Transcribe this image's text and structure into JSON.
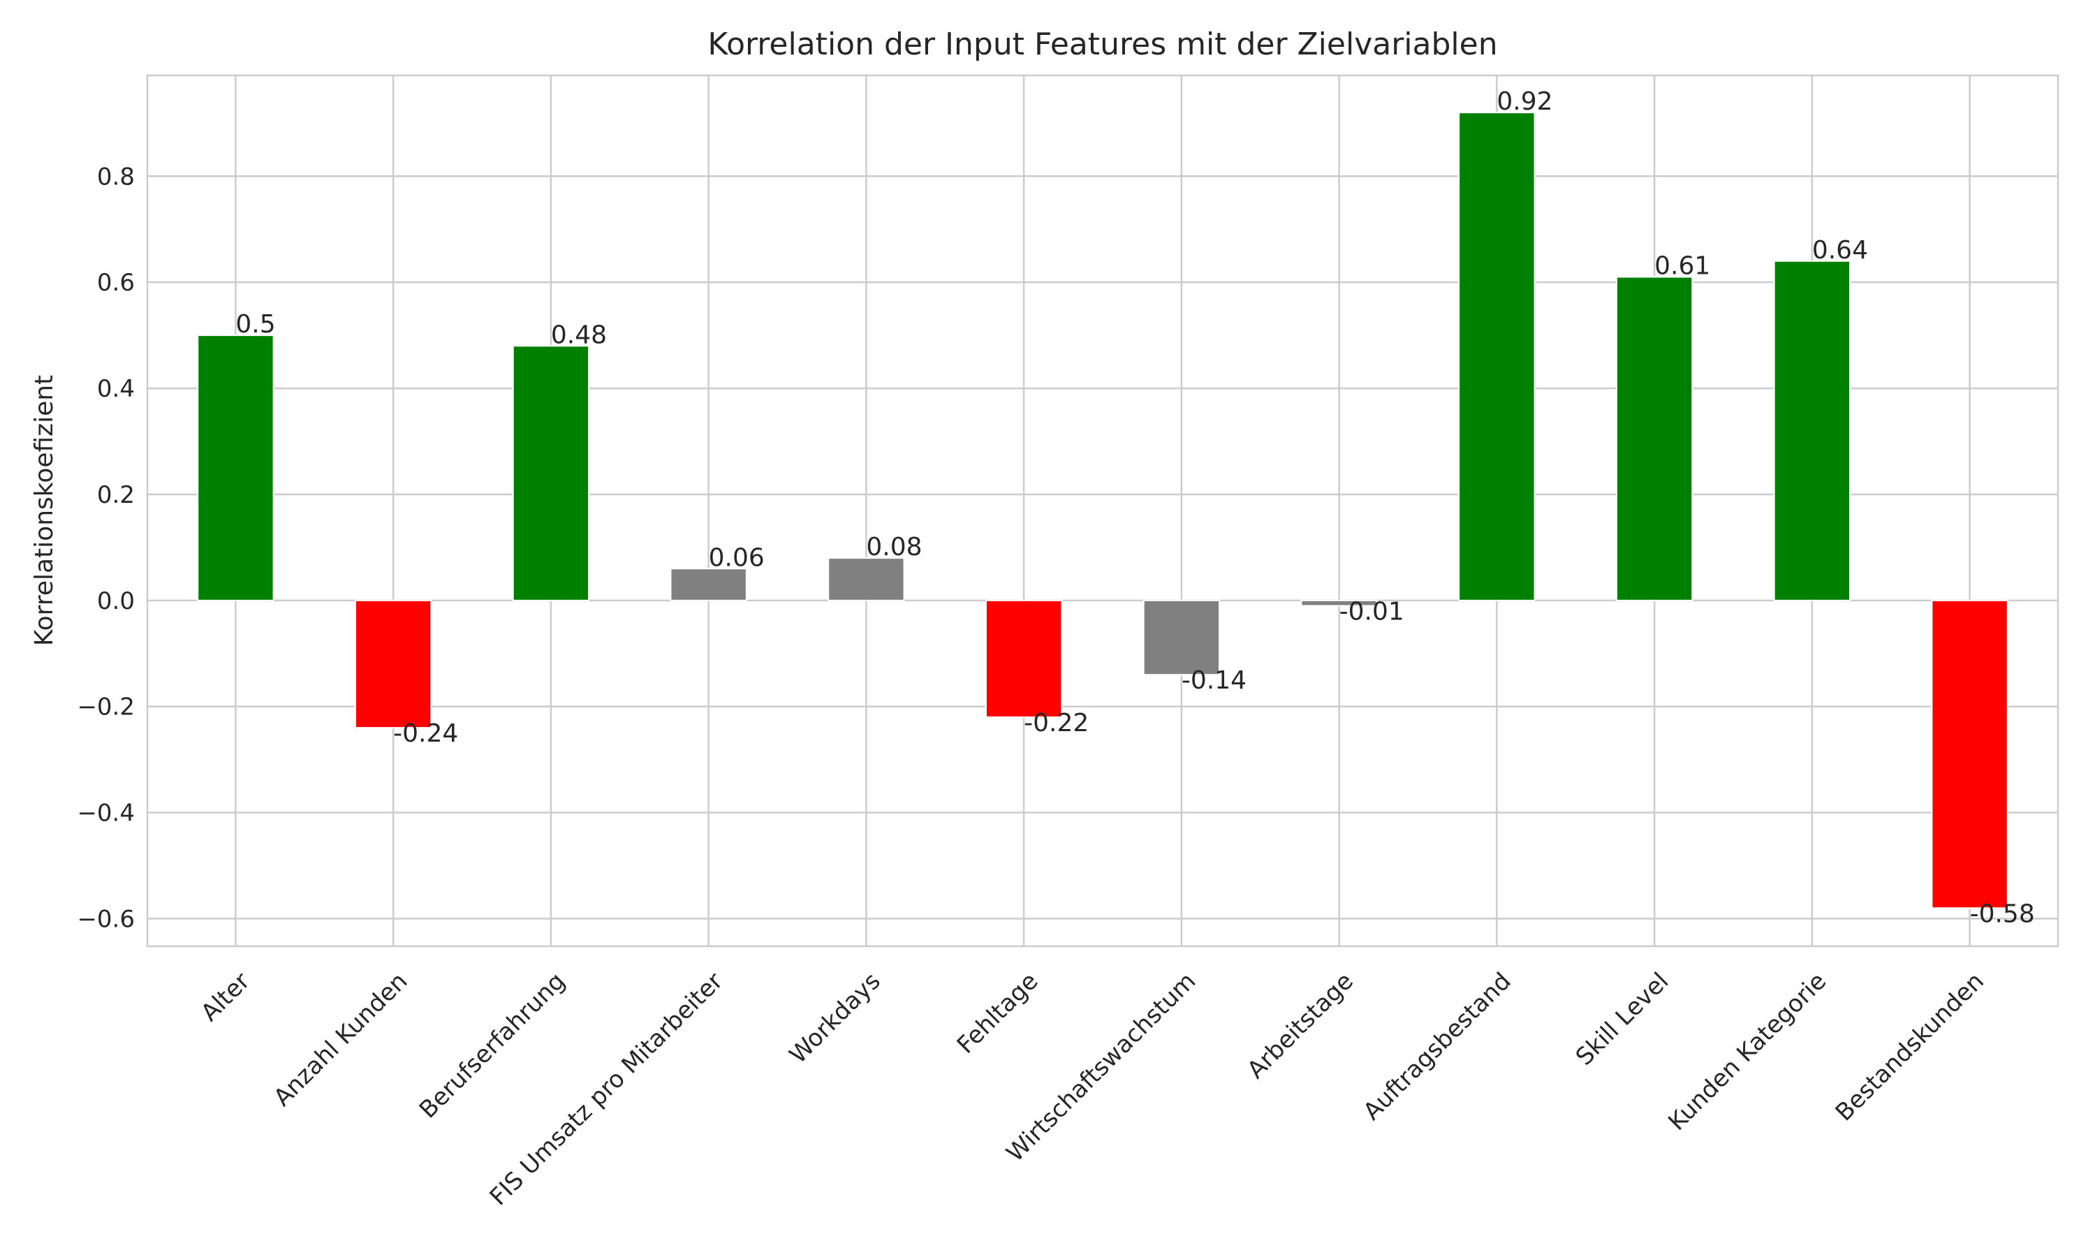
{
  "chart_data": {
    "type": "bar",
    "title": "Korrelation der Input Features mit der Zielvariablen",
    "xlabel": "",
    "ylabel": "Korrelationskoefizient",
    "categories": [
      "Alter",
      "Anzahl Kunden",
      "Berufserfahrung",
      "FIS Umsatz pro Mitarbeiter",
      "Workdays",
      "Fehltage",
      "Wirtschaftswachstum",
      "Arbeitstage",
      "Auftragsbestand",
      "Skill Level",
      "Kunden Kategorie",
      "Bestandskunden"
    ],
    "values": [
      0.5,
      -0.24,
      0.48,
      0.06,
      0.08,
      -0.22,
      -0.14,
      -0.01,
      0.92,
      0.61,
      0.64,
      -0.58
    ],
    "value_labels": [
      "0.5",
      "-0.24",
      "0.48",
      "0.06",
      "0.08",
      "-0.22",
      "-0.14",
      "-0.01",
      "0.92",
      "0.61",
      "0.64",
      "-0.58"
    ],
    "colors": [
      "#008000",
      "#ff0000",
      "#008000",
      "#808080",
      "#808080",
      "#ff0000",
      "#808080",
      "#808080",
      "#008000",
      "#008000",
      "#008000",
      "#ff0000"
    ],
    "ylim": [
      -0.652,
      0.99
    ],
    "yticks": [
      -0.6,
      -0.4,
      -0.2,
      0.0,
      0.2,
      0.4,
      0.6,
      0.8
    ],
    "ytick_labels": [
      "−0.6",
      "−0.4",
      "−0.2",
      "0.0",
      "0.2",
      "0.4",
      "0.6",
      "0.8"
    ],
    "grid": true,
    "legend": "none"
  }
}
